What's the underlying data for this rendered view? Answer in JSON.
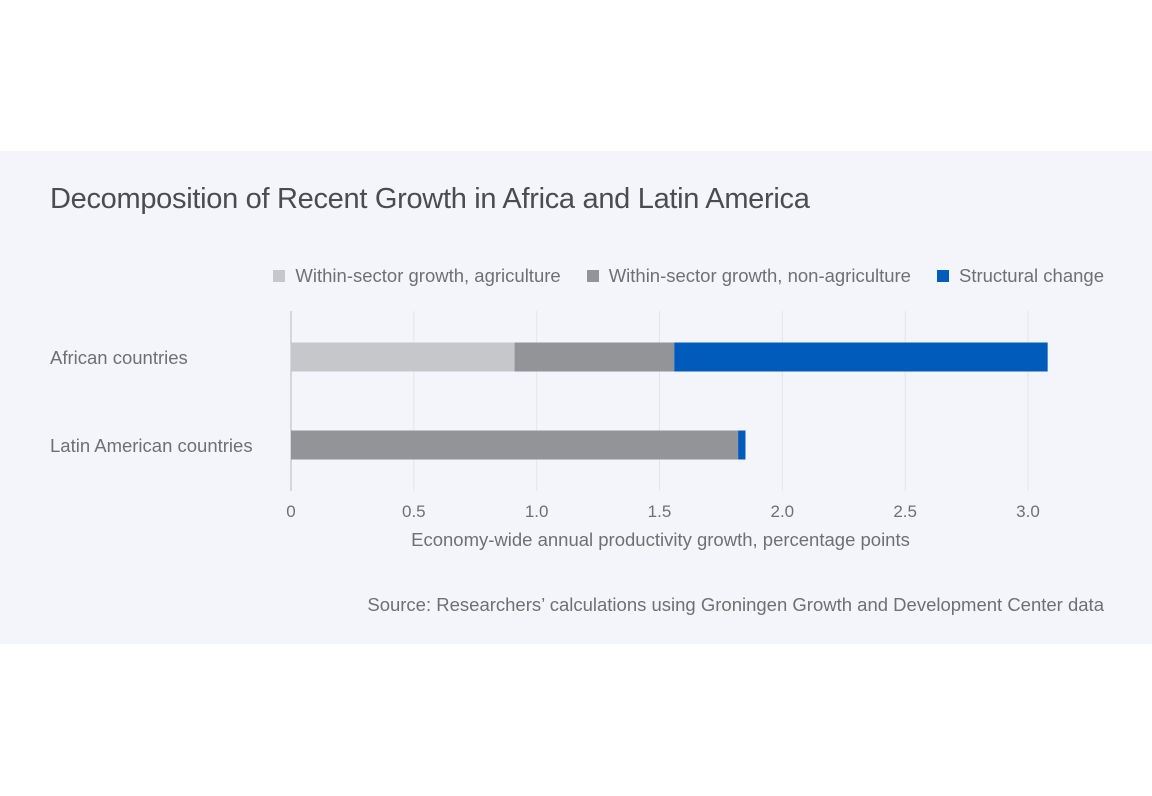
{
  "chart_data": {
    "type": "bar",
    "orientation": "horizontal",
    "stacked": true,
    "title": "Decomposition of Recent Growth in Africa and Latin America",
    "categories": [
      "African countries",
      "Latin American countries"
    ],
    "series": [
      {
        "name": "Within-sector growth, agriculture",
        "color": "#c6c7ca",
        "values": [
          0.91,
          0.0
        ]
      },
      {
        "name": "Within-sector growth, non-agriculture",
        "color": "#939497",
        "values": [
          0.65,
          1.82
        ]
      },
      {
        "name": "Structural change",
        "color": "#005bbb",
        "values": [
          1.52,
          0.03
        ]
      }
    ],
    "xlabel": "Economy-wide annual productivity growth, percentage points",
    "ylabel": "",
    "xlim": [
      0,
      3.0
    ],
    "xticks": [
      0,
      0.5,
      1.0,
      1.5,
      2.0,
      2.5,
      3.0
    ],
    "xtick_labels": [
      "0",
      "0.5",
      "1.0",
      "1.5",
      "2.0",
      "2.5",
      "3.0"
    ],
    "grid": "vertical",
    "legend_position": "top-right",
    "source": "Source: Researchers’ calculations using Groningen Growth and Development Center data"
  }
}
